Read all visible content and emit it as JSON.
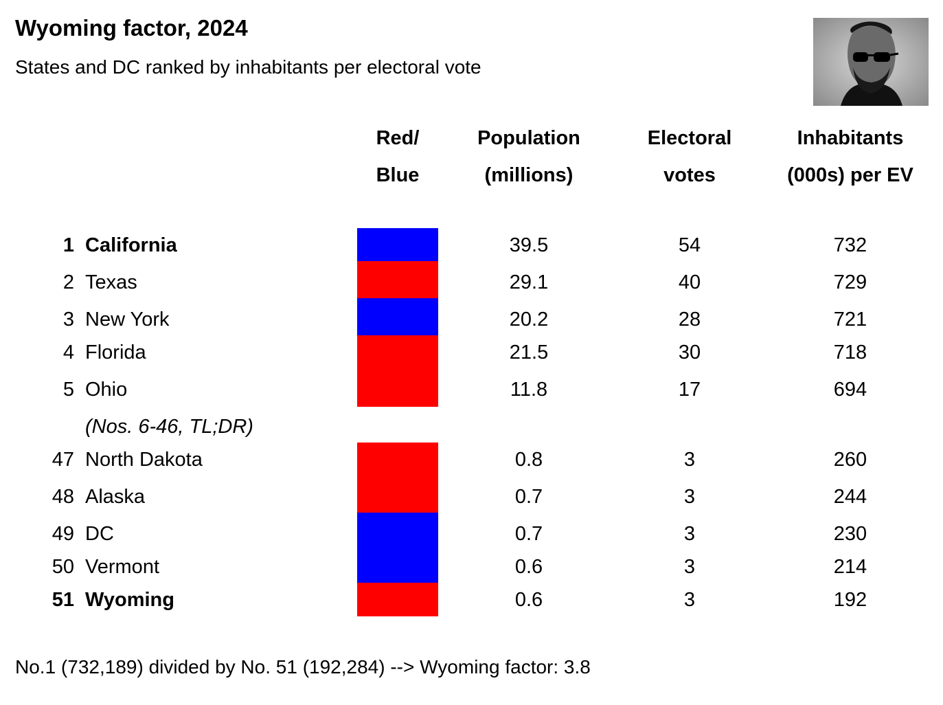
{
  "title": "Wyoming factor, 2024",
  "subtitle": "States and DC ranked by inhabitants per electoral vote",
  "portrait": {
    "icon": "lincoln-sunglasses-portrait"
  },
  "colors": {
    "red": "#ff0000",
    "blue": "#0000ff"
  },
  "headers": {
    "party": [
      "Red/",
      "Blue"
    ],
    "population": [
      "Population",
      "(millions)"
    ],
    "votes": [
      "Electoral",
      "votes"
    ],
    "per_ev": [
      "Inhabitants",
      "(000s) per EV"
    ]
  },
  "chart_data": {
    "type": "table",
    "columns": [
      "Red/Blue",
      "Population (millions)",
      "Electoral votes",
      "Inhabitants (000s) per EV"
    ],
    "rows": [
      {
        "rank": "1",
        "name": "California",
        "party": "blue",
        "population": "39.5",
        "votes": "54",
        "per_ev": "732",
        "bold": true
      },
      {
        "rank": "2",
        "name": "Texas",
        "party": "red",
        "population": "29.1",
        "votes": "40",
        "per_ev": "729",
        "bold": false
      },
      {
        "rank": "3",
        "name": "New York",
        "party": "blue",
        "population": "20.2",
        "votes": "28",
        "per_ev": "721",
        "bold": false
      },
      {
        "rank": "4",
        "name": "Florida",
        "party": "red",
        "population": "21.5",
        "votes": "30",
        "per_ev": "718",
        "bold": false
      },
      {
        "rank": "5",
        "name": "Ohio",
        "party": "red",
        "population": "11.8",
        "votes": "17",
        "per_ev": "694",
        "bold": false
      },
      {
        "rank": "47",
        "name": "North Dakota",
        "party": "red",
        "population": "0.8",
        "votes": "3",
        "per_ev": "260",
        "bold": false
      },
      {
        "rank": "48",
        "name": "Alaska",
        "party": "red",
        "population": "0.7",
        "votes": "3",
        "per_ev": "244",
        "bold": false
      },
      {
        "rank": "49",
        "name": "DC",
        "party": "blue",
        "population": "0.7",
        "votes": "3",
        "per_ev": "230",
        "bold": false
      },
      {
        "rank": "50",
        "name": "Vermont",
        "party": "blue",
        "population": "0.6",
        "votes": "3",
        "per_ev": "214",
        "bold": false
      },
      {
        "rank": "51",
        "name": "Wyoming",
        "party": "red",
        "population": "0.6",
        "votes": "3",
        "per_ev": "192",
        "bold": true
      }
    ],
    "gap_note": "(Nos. 6-46, TL;DR)"
  },
  "footer": "No.1 (732,189) divided by No. 51 (192,284) --> Wyoming factor: 3.8"
}
